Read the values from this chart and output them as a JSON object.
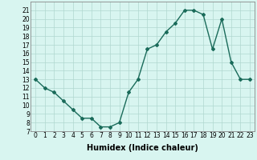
{
  "x": [
    0,
    1,
    2,
    3,
    4,
    5,
    6,
    7,
    8,
    9,
    10,
    11,
    12,
    13,
    14,
    15,
    16,
    17,
    18,
    19,
    20,
    21,
    22,
    23
  ],
  "y": [
    13,
    12,
    11.5,
    10.5,
    9.5,
    8.5,
    8.5,
    7.5,
    7.5,
    8,
    11.5,
    13,
    16.5,
    17,
    18.5,
    19.5,
    21,
    21,
    20.5,
    16.5,
    20,
    15,
    13,
    13
  ],
  "line_color": "#1a6b5a",
  "marker": "D",
  "marker_size": 2.0,
  "line_width": 1.0,
  "bg_color": "#d8f5f0",
  "grid_color": "#b0d8d0",
  "xlabel": "Humidex (Indice chaleur)",
  "xlabel_fontsize": 7,
  "tick_fontsize": 5.5,
  "xlim": [
    -0.5,
    23.5
  ],
  "ylim": [
    7,
    22
  ],
  "yticks": [
    7,
    8,
    9,
    10,
    11,
    12,
    13,
    14,
    15,
    16,
    17,
    18,
    19,
    20,
    21
  ],
  "xticks": [
    0,
    1,
    2,
    3,
    4,
    5,
    6,
    7,
    8,
    9,
    10,
    11,
    12,
    13,
    14,
    15,
    16,
    17,
    18,
    19,
    20,
    21,
    22,
    23
  ]
}
